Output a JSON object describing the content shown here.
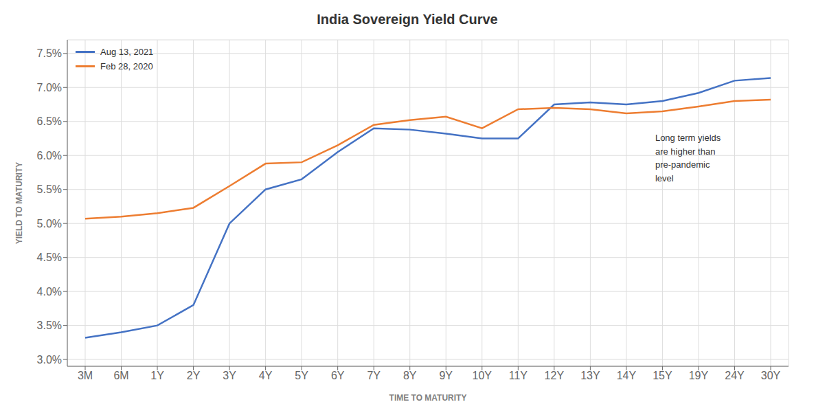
{
  "chart_data": {
    "type": "line",
    "title": "India Sovereign Yield Curve",
    "x_label": "TIME TO MATURITY",
    "y_label": "YIELD TO MATURITY",
    "categories": [
      "3M",
      "6M",
      "1Y",
      "2Y",
      "3Y",
      "4Y",
      "5Y",
      "6Y",
      "7Y",
      "8Y",
      "9Y",
      "10Y",
      "11Y",
      "12Y",
      "13Y",
      "14Y",
      "15Y",
      "19Y",
      "24Y",
      "30Y"
    ],
    "series": [
      {
        "name": "Aug 13, 2021",
        "color": "#4472C4",
        "values": [
          0.0332,
          0.034,
          0.035,
          0.038,
          0.05,
          0.055,
          0.0565,
          0.0605,
          0.064,
          0.0638,
          0.0632,
          0.0625,
          0.0625,
          0.0675,
          0.0678,
          0.0675,
          0.068,
          0.0692,
          0.071,
          0.0714
        ]
      },
      {
        "name": "Feb 28, 2020",
        "color": "#ED7D31",
        "values": [
          0.0507,
          0.051,
          0.0515,
          0.0523,
          0.0555,
          0.0588,
          0.059,
          0.0615,
          0.0645,
          0.0652,
          0.0657,
          0.064,
          0.0668,
          0.067,
          0.0668,
          0.0662,
          0.0665,
          0.0672,
          0.068,
          0.0682
        ]
      }
    ],
    "ylim": [
      0.029,
      0.077
    ],
    "yticks": [
      {
        "value": 0.03,
        "label": "3.0%"
      },
      {
        "value": 0.035,
        "label": "3.5%"
      },
      {
        "value": 0.04,
        "label": "4.0%"
      },
      {
        "value": 0.045,
        "label": "4.5%"
      },
      {
        "value": 0.05,
        "label": "5.0%"
      },
      {
        "value": 0.055,
        "label": "5.5%"
      },
      {
        "value": 0.06,
        "label": "6.0%"
      },
      {
        "value": 0.065,
        "label": "6.5%"
      },
      {
        "value": 0.07,
        "label": "7.0%"
      },
      {
        "value": 0.075,
        "label": "7.5%"
      }
    ],
    "grid": true,
    "legend": "upper left",
    "annotations": [
      {
        "text": "Long term yields\nare higher than\npre-pandemic\nlevel"
      }
    ]
  }
}
